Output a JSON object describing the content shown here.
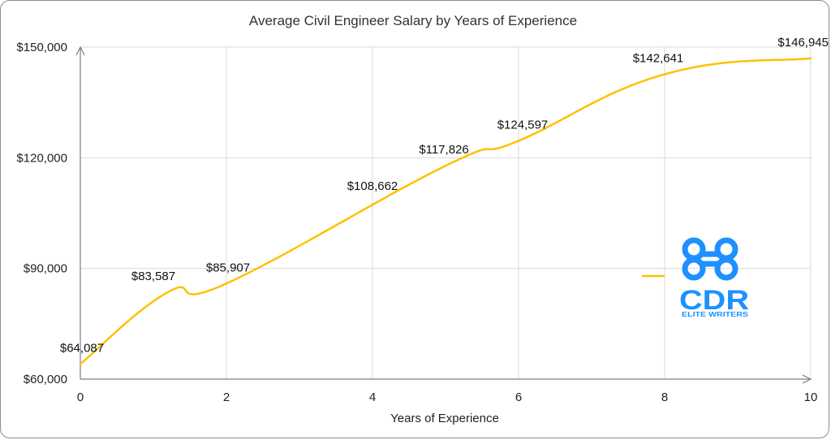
{
  "chart_data": {
    "type": "line",
    "title": "Average Civil Engineer Salary by Years of Experience",
    "xlabel": "Years of Experience",
    "ylabel": "",
    "x": [
      0,
      1.2,
      2,
      5,
      6,
      8,
      10
    ],
    "series": [
      {
        "values": [
          64087,
          83587,
          85907,
          117826,
          124597,
          142641,
          146945
        ],
        "data_labels": [
          "$64,087",
          "$83,587",
          "$85,907",
          "$117,826",
          "$124,597",
          "$142,641",
          "$146,945"
        ],
        "color": "#FFC000"
      }
    ],
    "extra_labels": [
      {
        "x": 4,
        "y": 108662,
        "label": "$108,662"
      }
    ],
    "xlim": [
      0,
      10
    ],
    "ylim": [
      60000,
      150000
    ],
    "x_ticks": [
      0,
      2,
      4,
      6,
      8,
      10
    ],
    "x_tick_labels": [
      "0",
      "2",
      "4",
      "6",
      "8",
      "10"
    ],
    "y_ticks": [
      60000,
      90000,
      120000,
      150000
    ],
    "y_tick_labels": [
      "$60,000",
      "$90,000",
      "$120,000",
      "$150,000"
    ],
    "grid": true,
    "legend": {
      "position": "right"
    }
  },
  "logo": {
    "text": "CDR",
    "subtext": "ELITE WRITERS",
    "color": "#1E90FF"
  }
}
